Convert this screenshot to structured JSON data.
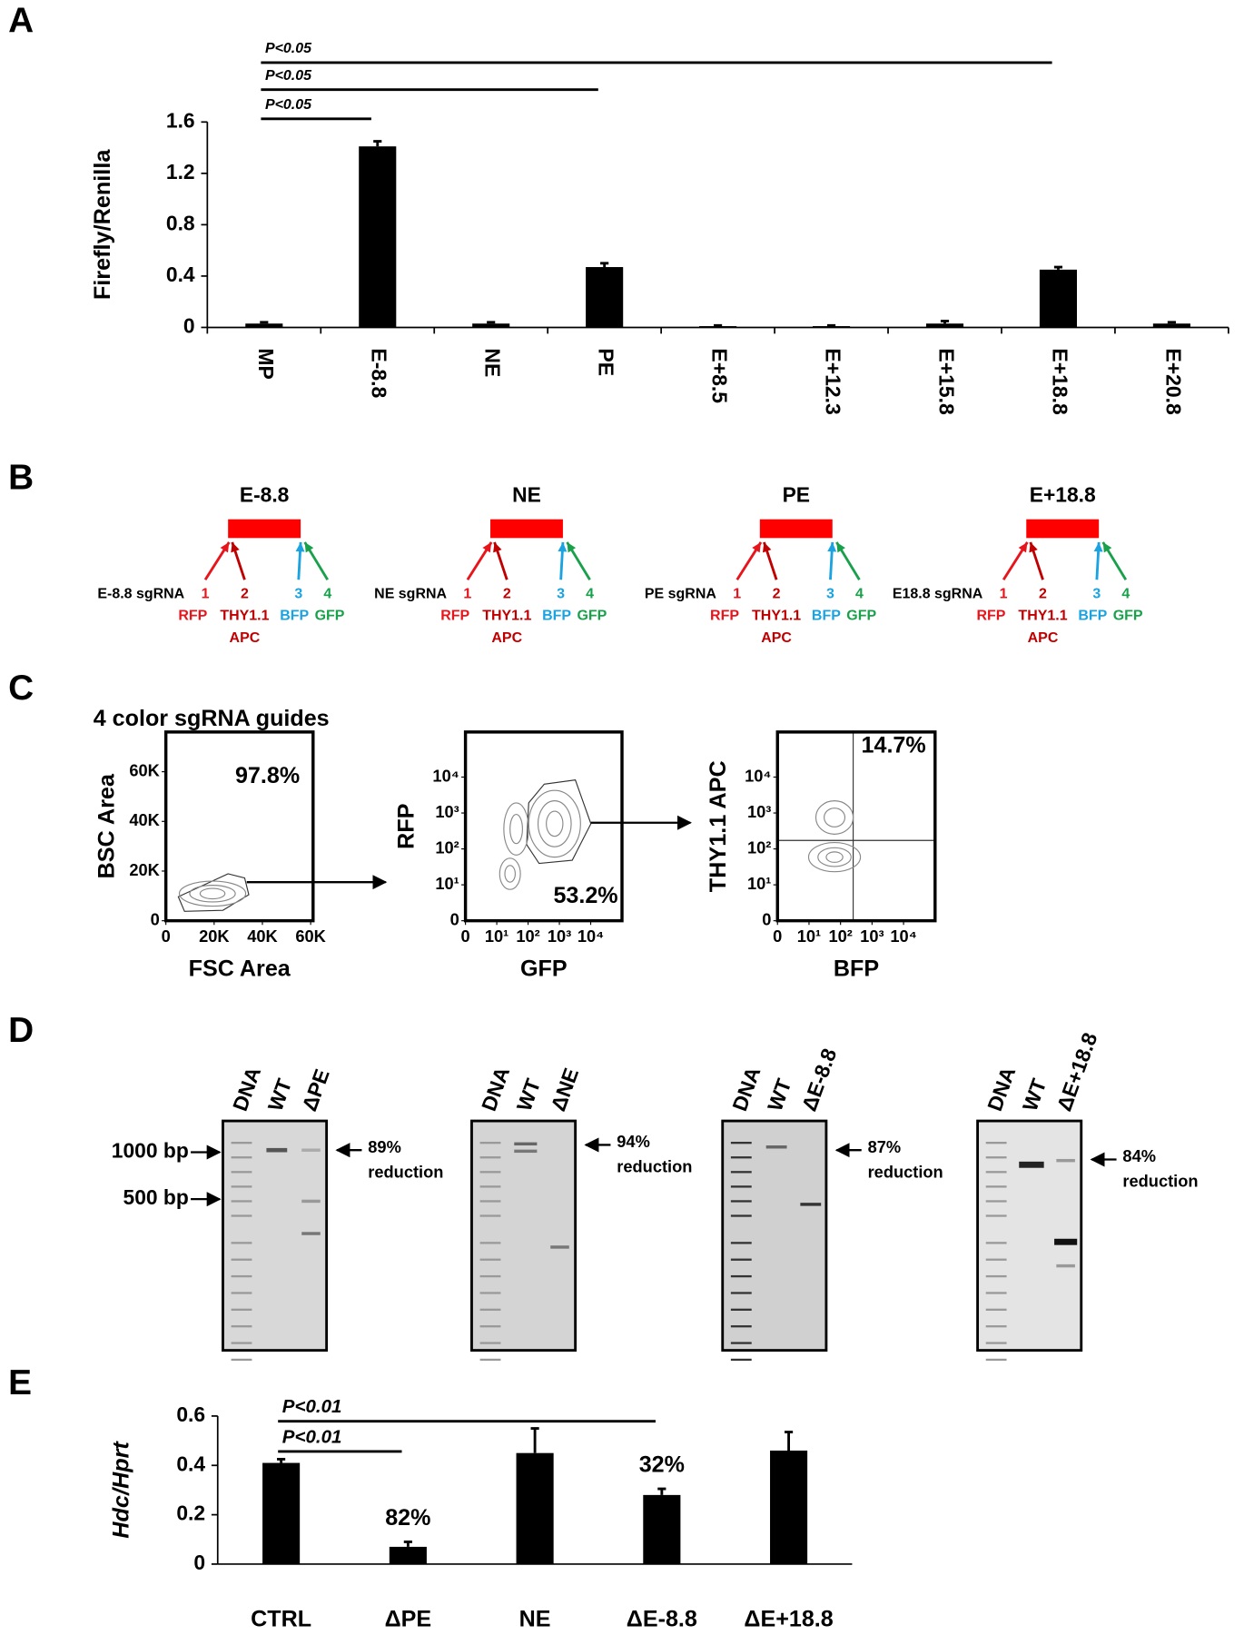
{
  "chart_data": [
    {
      "type": "bar",
      "panel": "A",
      "ylabel": "Firefly/Renilla",
      "categories": [
        "MP",
        "E-8.8",
        "NE",
        "PE",
        "E+8.5",
        "E+12.3",
        "E+15.8",
        "E+18.8",
        "E+20.8"
      ],
      "values": [
        0.03,
        1.41,
        0.03,
        0.47,
        0.01,
        0.01,
        0.03,
        0.45,
        0.03
      ],
      "errors": [
        0.01,
        0.04,
        0.01,
        0.03,
        0.005,
        0.005,
        0.02,
        0.02,
        0.01
      ],
      "color": "#000000",
      "ylim": [
        0,
        1.6
      ],
      "yticks": [
        0,
        0.4,
        0.8,
        1.2,
        1.6
      ],
      "significance": [
        {
          "from": 0,
          "to": 7,
          "label": "P<0.05"
        },
        {
          "from": 0,
          "to": 3,
          "label": "P<0.05"
        },
        {
          "from": 0,
          "to": 1,
          "label": "P<0.05"
        }
      ]
    },
    {
      "type": "bar",
      "panel": "E",
      "ylabel": "Hdc/Hprt",
      "categories": [
        "CTRL",
        "ΔPE",
        "NE",
        "ΔE-8.8",
        "ΔE+18.8"
      ],
      "values": [
        0.41,
        0.07,
        0.45,
        0.28,
        0.46
      ],
      "errors": [
        0.015,
        0.02,
        0.1,
        0.025,
        0.075
      ],
      "bar_notes": [
        null,
        "82%",
        null,
        "32%",
        null
      ],
      "color": "#000000",
      "ylim": [
        0,
        0.6
      ],
      "yticks": [
        0,
        0.2,
        0.4,
        0.6
      ],
      "significance": [
        {
          "from": 0,
          "to": 3,
          "label": "P<0.01"
        },
        {
          "from": 0,
          "to": 1,
          "label": "P<0.01"
        }
      ]
    }
  ],
  "panel_b": {
    "label": "B",
    "groups": [
      {
        "title": "E-8.8",
        "sgrna": "E-8.8 sgRNA",
        "guides": [
          {
            "number": 1,
            "name": "RFP",
            "color": "#e8141b"
          },
          {
            "number": 2,
            "name": "THY1.1",
            "sub": "APC",
            "color": "#c00000"
          },
          {
            "number": 3,
            "name": "BFP",
            "color": "#1aa3e0"
          },
          {
            "number": 4,
            "name": "GFP",
            "color": "#19a04b"
          }
        ]
      },
      {
        "title": "NE",
        "sgrna": "NE sgRNA",
        "guides": [
          {
            "number": 1,
            "name": "RFP",
            "color": "#e8141b"
          },
          {
            "number": 2,
            "name": "THY1.1",
            "sub": "APC",
            "color": "#c00000"
          },
          {
            "number": 3,
            "name": "BFP",
            "color": "#1aa3e0"
          },
          {
            "number": 4,
            "name": "GFP",
            "color": "#19a04b"
          }
        ]
      },
      {
        "title": "PE",
        "sgrna": "PE sgRNA",
        "guides": [
          {
            "number": 1,
            "name": "RFP",
            "color": "#e8141b"
          },
          {
            "number": 2,
            "name": "THY1.1",
            "sub": "APC",
            "color": "#c00000"
          },
          {
            "number": 3,
            "name": "BFP",
            "color": "#1aa3e0"
          },
          {
            "number": 4,
            "name": "GFP",
            "color": "#19a04b"
          }
        ]
      },
      {
        "title": "E+18.8",
        "sgrna": "E18.8 sgRNA",
        "guides": [
          {
            "number": 1,
            "name": "RFP",
            "color": "#e8141b"
          },
          {
            "number": 2,
            "name": "THY1.1",
            "sub": "APC",
            "color": "#c00000"
          },
          {
            "number": 3,
            "name": "BFP",
            "color": "#1aa3e0"
          },
          {
            "number": 4,
            "name": "GFP",
            "color": "#19a04b"
          }
        ]
      }
    ]
  },
  "panel_c": {
    "label": "C",
    "subtitle": "4 color sgRNA guides",
    "plots": [
      {
        "xlabel": "FSC Area",
        "ylabel": "BSC Area",
        "xlim": [
          0,
          61000
        ],
        "ylim": [
          0,
          76000
        ],
        "xticks": [
          0,
          {
            "value": 20000,
            "label": "20K"
          },
          {
            "value": 40000,
            "label": "40K"
          },
          {
            "value": 60000,
            "label": "60K"
          }
        ],
        "yticks": [
          0,
          {
            "value": 20000,
            "label": "20K"
          },
          {
            "value": 40000,
            "label": "40K"
          },
          {
            "value": 60000,
            "label": "60K"
          }
        ],
        "gate_percent": "97.8%"
      },
      {
        "xlabel": "GFP",
        "ylabel": "RFP",
        "log": true,
        "xlim": [
          0,
          100000
        ],
        "ylim": [
          0,
          180000
        ],
        "xticks": [
          0,
          {
            "value": 10,
            "label": "10¹"
          },
          {
            "value": 100,
            "label": "10²"
          },
          {
            "value": 1000,
            "label": "10³"
          },
          {
            "value": 10000,
            "label": "10⁴"
          }
        ],
        "yticks": [
          0,
          {
            "value": 10,
            "label": "10¹"
          },
          {
            "value": 100,
            "label": "10²"
          },
          {
            "value": 1000,
            "label": "10³"
          },
          {
            "value": 10000,
            "label": "10⁴"
          }
        ],
        "gate_percent": "53.2%"
      },
      {
        "xlabel": "BFP",
        "ylabel": "THY1.1 APC",
        "log": true,
        "xlim": [
          0,
          100000
        ],
        "ylim": [
          0,
          180000
        ],
        "xticks": [
          0,
          {
            "value": 10,
            "label": "10¹"
          },
          {
            "value": 100,
            "label": "10²"
          },
          {
            "value": 1000,
            "label": "10³"
          },
          {
            "value": 10000,
            "label": "10⁴"
          }
        ],
        "yticks": [
          0,
          {
            "value": 10,
            "label": "10¹"
          },
          {
            "value": 100,
            "label": "10²"
          },
          {
            "value": 1000,
            "label": "10³"
          },
          {
            "value": 10000,
            "label": "10⁴"
          }
        ],
        "gate_percent": "14.7%"
      }
    ]
  },
  "panel_d": {
    "label": "D",
    "markers": [
      "1000 bp",
      "500 bp"
    ],
    "gels": [
      {
        "lanes": [
          "DNA",
          "WT",
          "ΔPE"
        ],
        "percent": "89%",
        "word": "reduction"
      },
      {
        "lanes": [
          "DNA",
          "WT",
          "ΔNE"
        ],
        "percent": "94%",
        "word": "reduction"
      },
      {
        "lanes": [
          "DNA",
          "WT",
          "ΔE-8.8"
        ],
        "percent": "87%",
        "word": "reduction"
      },
      {
        "lanes": [
          "DNA",
          "WT",
          "ΔE+18.8"
        ],
        "percent": "84%",
        "word": "reduction"
      }
    ]
  }
}
